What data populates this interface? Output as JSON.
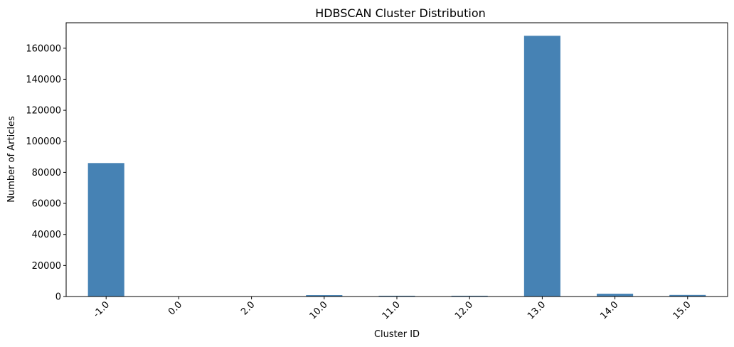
{
  "chart_data": {
    "type": "bar",
    "title": "HDBSCAN Cluster Distribution",
    "xlabel": "Cluster ID",
    "ylabel": "Number of Articles",
    "categories": [
      "-1.0",
      "0.0",
      "2.0",
      "10.0",
      "11.0",
      "12.0",
      "13.0",
      "14.0",
      "15.0"
    ],
    "values": [
      86000,
      60,
      80,
      900,
      500,
      500,
      168000,
      1800,
      1000
    ],
    "ylim": [
      0,
      176400
    ],
    "yticks": [
      0,
      20000,
      40000,
      60000,
      80000,
      100000,
      120000,
      140000,
      160000
    ],
    "ytick_labels": [
      "0",
      "20000",
      "40000",
      "60000",
      "80000",
      "100000",
      "120000",
      "140000",
      "160000"
    ],
    "xtick_rotation": 45,
    "grid": false,
    "legend": "none",
    "bar_color": "#4682b4"
  }
}
